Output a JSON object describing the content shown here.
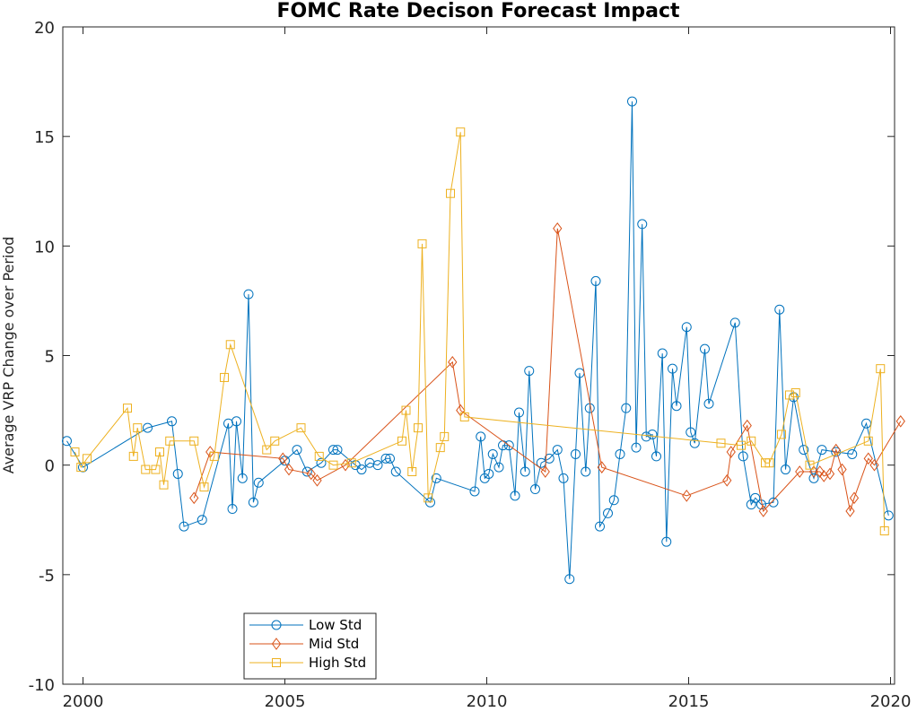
{
  "chart_data": {
    "type": "line",
    "title": "FOMC Rate Decison Forecast Impact",
    "xlabel": "",
    "ylabel": "Average VRP Change over Period",
    "xlim": [
      1999.5,
      2020.1
    ],
    "ylim": [
      -10,
      20
    ],
    "x_ticks": [
      2000,
      2005,
      2010,
      2015,
      2020
    ],
    "y_ticks": [
      -10,
      -5,
      0,
      5,
      10,
      15,
      20
    ],
    "grid": false,
    "legend_position": "bottom-left",
    "series": [
      {
        "name": "Low Std",
        "color": "#0072BD",
        "marker": "circle",
        "points": [
          [
            1999.6,
            1.1
          ],
          [
            2000.0,
            -0.1
          ],
          [
            2001.6,
            1.7
          ],
          [
            2002.2,
            2.0
          ],
          [
            2002.35,
            -0.4
          ],
          [
            2002.5,
            -2.8
          ],
          [
            2002.95,
            -2.5
          ],
          [
            2003.6,
            1.9
          ],
          [
            2003.7,
            -2.0
          ],
          [
            2003.8,
            2.0
          ],
          [
            2003.95,
            -0.6
          ],
          [
            2004.1,
            7.8
          ],
          [
            2004.22,
            -1.7
          ],
          [
            2004.35,
            -0.8
          ],
          [
            2005.0,
            0.2
          ],
          [
            2005.3,
            0.7
          ],
          [
            2005.55,
            -0.3
          ],
          [
            2005.9,
            0.1
          ],
          [
            2006.2,
            0.7
          ],
          [
            2006.3,
            0.7
          ],
          [
            2006.75,
            0.0
          ],
          [
            2006.9,
            -0.2
          ],
          [
            2007.1,
            0.1
          ],
          [
            2007.3,
            0.0
          ],
          [
            2007.5,
            0.3
          ],
          [
            2007.6,
            0.3
          ],
          [
            2007.75,
            -0.3
          ],
          [
            2008.6,
            -1.7
          ],
          [
            2008.75,
            -0.6
          ],
          [
            2009.7,
            -1.2
          ],
          [
            2009.85,
            1.3
          ],
          [
            2009.95,
            -0.6
          ],
          [
            2010.05,
            -0.4
          ],
          [
            2010.15,
            0.5
          ],
          [
            2010.3,
            -0.1
          ],
          [
            2010.4,
            0.9
          ],
          [
            2010.55,
            0.9
          ],
          [
            2010.7,
            -1.4
          ],
          [
            2010.8,
            2.4
          ],
          [
            2010.95,
            -0.3
          ],
          [
            2011.05,
            4.3
          ],
          [
            2011.2,
            -1.1
          ],
          [
            2011.35,
            0.1
          ],
          [
            2011.55,
            0.3
          ],
          [
            2011.75,
            0.7
          ],
          [
            2011.9,
            -0.6
          ],
          [
            2012.05,
            -5.2
          ],
          [
            2012.2,
            0.5
          ],
          [
            2012.3,
            4.2
          ],
          [
            2012.45,
            -0.3
          ],
          [
            2012.55,
            2.6
          ],
          [
            2012.7,
            8.4
          ],
          [
            2012.8,
            -2.8
          ],
          [
            2013.0,
            -2.2
          ],
          [
            2013.15,
            -1.6
          ],
          [
            2013.3,
            0.5
          ],
          [
            2013.45,
            2.6
          ],
          [
            2013.6,
            16.6
          ],
          [
            2013.7,
            0.8
          ],
          [
            2013.85,
            11.0
          ],
          [
            2013.95,
            1.3
          ],
          [
            2014.1,
            1.4
          ],
          [
            2014.2,
            0.4
          ],
          [
            2014.35,
            5.1
          ],
          [
            2014.45,
            -3.5
          ],
          [
            2014.6,
            4.4
          ],
          [
            2014.7,
            2.7
          ],
          [
            2014.95,
            6.3
          ],
          [
            2015.05,
            1.5
          ],
          [
            2015.15,
            1.0
          ],
          [
            2015.4,
            5.3
          ],
          [
            2015.5,
            2.8
          ],
          [
            2016.15,
            6.5
          ],
          [
            2016.35,
            0.4
          ],
          [
            2016.55,
            -1.8
          ],
          [
            2016.65,
            -1.5
          ],
          [
            2016.8,
            -1.8
          ],
          [
            2017.1,
            -1.7
          ],
          [
            2017.25,
            7.1
          ],
          [
            2017.4,
            -0.2
          ],
          [
            2017.6,
            3.1
          ],
          [
            2017.85,
            0.7
          ],
          [
            2018.1,
            -0.6
          ],
          [
            2018.3,
            0.7
          ],
          [
            2018.65,
            0.6
          ],
          [
            2019.05,
            0.5
          ],
          [
            2019.4,
            1.9
          ],
          [
            2019.95,
            -2.3
          ]
        ]
      },
      {
        "name": "Mid Std",
        "color": "#D95319",
        "marker": "diamond",
        "points": [
          [
            2002.75,
            -1.5
          ],
          [
            2003.15,
            0.6
          ],
          [
            2004.95,
            0.3
          ],
          [
            2005.1,
            -0.2
          ],
          [
            2005.65,
            -0.4
          ],
          [
            2005.8,
            -0.7
          ],
          [
            2006.5,
            0.0
          ],
          [
            2009.15,
            4.7
          ],
          [
            2009.35,
            2.5
          ],
          [
            2011.45,
            -0.3
          ],
          [
            2011.75,
            10.8
          ],
          [
            2012.85,
            -0.1
          ],
          [
            2014.95,
            -1.4
          ],
          [
            2015.95,
            -0.7
          ],
          [
            2016.05,
            0.6
          ],
          [
            2016.45,
            1.8
          ],
          [
            2016.85,
            -2.1
          ],
          [
            2017.75,
            -0.3
          ],
          [
            2018.1,
            -0.3
          ],
          [
            2018.25,
            -0.3
          ],
          [
            2018.35,
            -0.5
          ],
          [
            2018.5,
            -0.4
          ],
          [
            2018.65,
            0.7
          ],
          [
            2018.8,
            -0.2
          ],
          [
            2019.0,
            -2.1
          ],
          [
            2019.1,
            -1.5
          ],
          [
            2019.45,
            0.3
          ],
          [
            2019.6,
            0.0
          ],
          [
            2020.25,
            2.0
          ]
        ]
      },
      {
        "name": "High Std",
        "color": "#EDB120",
        "marker": "square",
        "points": [
          [
            1999.8,
            0.6
          ],
          [
            1999.95,
            -0.1
          ],
          [
            2000.1,
            0.3
          ],
          [
            2001.1,
            2.6
          ],
          [
            2001.25,
            0.4
          ],
          [
            2001.35,
            1.7
          ],
          [
            2001.55,
            -0.2
          ],
          [
            2001.8,
            -0.2
          ],
          [
            2001.9,
            0.6
          ],
          [
            2002.0,
            -0.9
          ],
          [
            2002.15,
            1.1
          ],
          [
            2002.75,
            1.1
          ],
          [
            2003.0,
            -1.0
          ],
          [
            2003.25,
            0.4
          ],
          [
            2003.5,
            4.0
          ],
          [
            2003.65,
            5.5
          ],
          [
            2004.55,
            0.7
          ],
          [
            2004.75,
            1.1
          ],
          [
            2005.4,
            1.7
          ],
          [
            2005.85,
            0.4
          ],
          [
            2006.2,
            0.0
          ],
          [
            2006.65,
            0.1
          ],
          [
            2007.9,
            1.1
          ],
          [
            2008.0,
            2.5
          ],
          [
            2008.15,
            -0.3
          ],
          [
            2008.3,
            1.7
          ],
          [
            2008.4,
            10.1
          ],
          [
            2008.55,
            -1.5
          ],
          [
            2008.85,
            0.8
          ],
          [
            2008.95,
            1.3
          ],
          [
            2009.1,
            12.4
          ],
          [
            2009.35,
            15.2
          ],
          [
            2009.45,
            2.2
          ],
          [
            2015.8,
            1.0
          ],
          [
            2016.3,
            0.9
          ],
          [
            2016.55,
            1.1
          ],
          [
            2016.9,
            0.1
          ],
          [
            2017.0,
            0.1
          ],
          [
            2017.3,
            1.4
          ],
          [
            2017.5,
            3.2
          ],
          [
            2017.65,
            3.3
          ],
          [
            2018.0,
            0.0
          ],
          [
            2019.45,
            1.1
          ],
          [
            2019.75,
            4.4
          ],
          [
            2019.85,
            -3.0
          ]
        ]
      }
    ]
  }
}
